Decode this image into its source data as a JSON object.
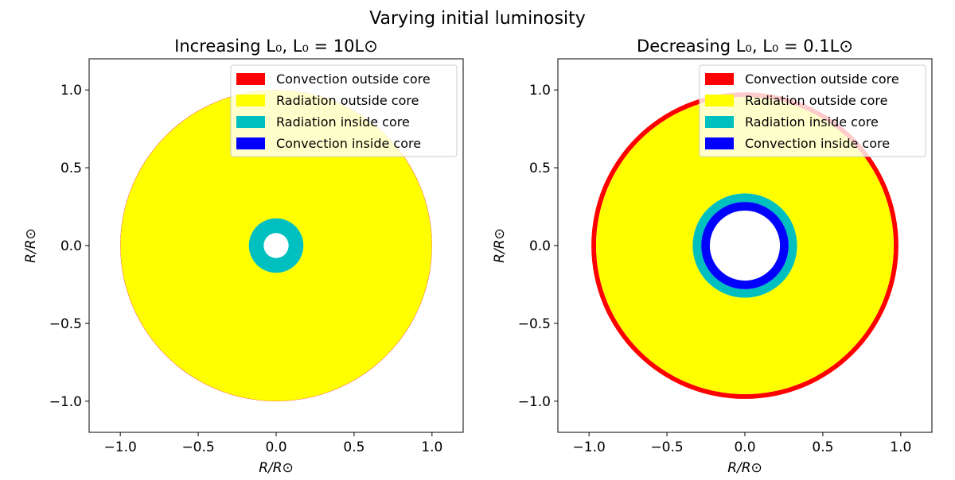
{
  "figure": {
    "title": "Varying initial luminosity"
  },
  "chart_data": [
    {
      "type": "area",
      "title": "Increasing L₀, L₀ = 10L⊙",
      "xlabel": "R/R⊙",
      "ylabel": "R/R⊙",
      "xlim": [
        -1.2,
        1.2
      ],
      "ylim": [
        -1.2,
        1.2
      ],
      "xticks": [
        -1.0,
        -0.5,
        0.0,
        0.5,
        1.0
      ],
      "yticks": [
        -1.0,
        -0.5,
        0.0,
        0.5,
        1.0
      ],
      "xtick_labels": [
        "−1.0",
        "−0.5",
        "0.0",
        "0.5",
        "1.0"
      ],
      "ytick_labels": [
        "−1.0",
        "−0.5",
        "0.0",
        "0.5",
        "1.0"
      ],
      "grid": false,
      "legend_position": "top-right",
      "legend": [
        {
          "label": "Convection outside core",
          "color": "#ff0000"
        },
        {
          "label": "Radiation outside core",
          "color": "#ffff00"
        },
        {
          "label": "Radiation inside core",
          "color": "#00bfbf"
        },
        {
          "label": "Convection inside core",
          "color": "#0000ff"
        }
      ],
      "shells": [
        {
          "series": "Convection outside core",
          "outer_radius": 1.0,
          "inner_radius": 0.998,
          "color": "#ff0000"
        },
        {
          "series": "Radiation outside core",
          "outer_radius": 0.998,
          "inner_radius": 0.175,
          "color": "#ffff00"
        },
        {
          "series": "Radiation inside core",
          "outer_radius": 0.175,
          "inner_radius": 0.08,
          "color": "#00bfbf"
        }
      ]
    },
    {
      "type": "area",
      "title": "Decreasing L₀, L₀ = 0.1L⊙",
      "xlabel": "R/R⊙",
      "ylabel": "R/R⊙",
      "xlim": [
        -1.2,
        1.2
      ],
      "ylim": [
        -1.2,
        1.2
      ],
      "xticks": [
        -1.0,
        -0.5,
        0.0,
        0.5,
        1.0
      ],
      "yticks": [
        -1.0,
        -0.5,
        0.0,
        0.5,
        1.0
      ],
      "xtick_labels": [
        "−1.0",
        "−0.5",
        "0.0",
        "0.5",
        "1.0"
      ],
      "ytick_labels": [
        "−1.0",
        "−0.5",
        "0.0",
        "0.5",
        "1.0"
      ],
      "grid": false,
      "legend_position": "top-right",
      "legend": [
        {
          "label": "Convection outside core",
          "color": "#ff0000"
        },
        {
          "label": "Radiation outside core",
          "color": "#ffff00"
        },
        {
          "label": "Radiation inside core",
          "color": "#00bfbf"
        },
        {
          "label": "Convection inside core",
          "color": "#0000ff"
        }
      ],
      "shells": [
        {
          "series": "Convection outside core",
          "outer_radius": 0.985,
          "inner_radius": 0.955,
          "color": "#ff0000"
        },
        {
          "series": "Radiation outside core",
          "outer_radius": 0.955,
          "inner_radius": 0.335,
          "color": "#ffff00"
        },
        {
          "series": "Radiation inside core",
          "outer_radius": 0.335,
          "inner_radius": 0.28,
          "color": "#00bfbf"
        },
        {
          "series": "Convection inside core",
          "outer_radius": 0.28,
          "inner_radius": 0.225,
          "color": "#0000ff"
        }
      ]
    }
  ]
}
